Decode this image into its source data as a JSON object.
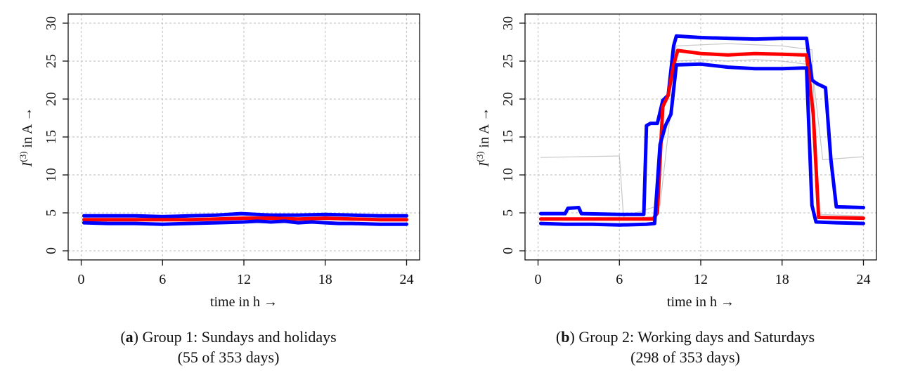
{
  "chart_data": [
    {
      "type": "line",
      "caption_letter": "a",
      "caption_line1": ") Group 1: Sundays and holidays",
      "caption_line2": "(55 of 353 days)",
      "xlabel": "time in h",
      "ylabel_main": "I",
      "ylabel_sup": "(3)",
      "ylabel_rest": " in A",
      "arrow": "→",
      "xlim": [
        0,
        24
      ],
      "ylim": [
        0,
        30
      ],
      "xticks": [
        0,
        6,
        12,
        18,
        24
      ],
      "yticks": [
        0,
        5,
        10,
        15,
        20,
        25,
        30
      ],
      "grid": true,
      "series": [
        {
          "color": "#0000ff",
          "x": [
            0.2,
            2,
            4,
            6,
            8,
            10,
            11.8,
            14,
            16,
            18,
            20,
            22,
            24
          ],
          "y": [
            4.6,
            4.6,
            4.6,
            4.5,
            4.6,
            4.7,
            4.9,
            4.7,
            4.7,
            4.8,
            4.7,
            4.6,
            4.6
          ]
        },
        {
          "color": "#ff0000",
          "x": [
            0.2,
            2,
            4,
            6,
            8,
            10,
            12,
            14,
            16,
            18,
            20,
            22,
            24
          ],
          "y": [
            4.1,
            4.1,
            4.1,
            4.1,
            4.1,
            4.2,
            4.3,
            4.3,
            4.2,
            4.3,
            4.2,
            4.1,
            4.1
          ]
        },
        {
          "color": "#0000ff",
          "x": [
            0.2,
            2,
            4,
            6,
            8,
            10,
            12,
            13,
            14,
            15,
            16,
            17,
            18,
            19,
            20,
            22,
            24
          ],
          "y": [
            3.7,
            3.6,
            3.6,
            3.5,
            3.6,
            3.7,
            3.8,
            3.9,
            3.8,
            3.9,
            3.7,
            3.8,
            3.7,
            3.6,
            3.6,
            3.5,
            3.5
          ]
        }
      ]
    },
    {
      "type": "line",
      "caption_letter": "b",
      "caption_line1": ") Group 2: Working days and Saturdays",
      "caption_line2": "(298 of 353 days)",
      "xlabel": "time in h",
      "ylabel_main": "I",
      "ylabel_sup": "(3)",
      "ylabel_rest": " in A",
      "arrow": "→",
      "xlim": [
        0,
        24
      ],
      "ylim": [
        0,
        30
      ],
      "xticks": [
        0,
        6,
        12,
        18,
        24
      ],
      "yticks": [
        0,
        5,
        10,
        15,
        20,
        25,
        30
      ],
      "grid": true,
      "series": [
        {
          "color": "#b0b0b0",
          "x": [
            0.2,
            6.0,
            6.3,
            9.0,
            10.2,
            12,
            14,
            16,
            18,
            20.2,
            21.0,
            24
          ],
          "y": [
            12.3,
            12.5,
            4.5,
            6.0,
            25.0,
            25.2,
            25.0,
            25.2,
            25.0,
            24.5,
            12.0,
            12.4
          ]
        },
        {
          "color": "#b0b0b0",
          "x": [
            0.2,
            6,
            8.5,
            9.2,
            10.2,
            14,
            18,
            20.2,
            20.7,
            24
          ],
          "y": [
            4.2,
            4.1,
            4.5,
            18.0,
            27.0,
            27.3,
            27.0,
            26.5,
            4.8,
            4.6
          ]
        },
        {
          "color": "#0000ff",
          "x": [
            0.2,
            2.0,
            2.2,
            3.0,
            3.2,
            6.0,
            7.8,
            8.0,
            8.3,
            8.8,
            9.2,
            9.6,
            10.0,
            10.2,
            12,
            14,
            16,
            18,
            19.8,
            20.2,
            20.6,
            21.2,
            21.6,
            22.0,
            24
          ],
          "y": [
            4.9,
            4.9,
            5.6,
            5.7,
            4.9,
            4.8,
            4.8,
            16.5,
            16.8,
            16.8,
            19.8,
            20.5,
            27.0,
            28.3,
            28.1,
            28.0,
            27.9,
            28.0,
            28.0,
            22.5,
            22.0,
            21.5,
            12.0,
            5.8,
            5.7
          ]
        },
        {
          "color": "#ff0000",
          "x": [
            0.2,
            6,
            8.5,
            8.8,
            9.2,
            9.6,
            10.0,
            10.3,
            12,
            14,
            16,
            18,
            19.8,
            20.3,
            20.7,
            24
          ],
          "y": [
            4.2,
            4.2,
            4.2,
            5.0,
            19.0,
            20.5,
            24.5,
            26.4,
            26.0,
            25.8,
            26.0,
            25.9,
            25.8,
            18.0,
            4.4,
            4.3
          ]
        },
        {
          "color": "#0000ff",
          "x": [
            0.2,
            2,
            4,
            6,
            8,
            8.6,
            9.0,
            9.4,
            9.8,
            10.2,
            12,
            14,
            16,
            18,
            19.8,
            20.2,
            20.5,
            22,
            24
          ],
          "y": [
            3.6,
            3.5,
            3.5,
            3.4,
            3.5,
            3.6,
            14.0,
            16.5,
            18.0,
            24.5,
            24.6,
            24.2,
            24.0,
            24.0,
            24.1,
            6.0,
            3.8,
            3.7,
            3.6
          ]
        }
      ]
    }
  ]
}
